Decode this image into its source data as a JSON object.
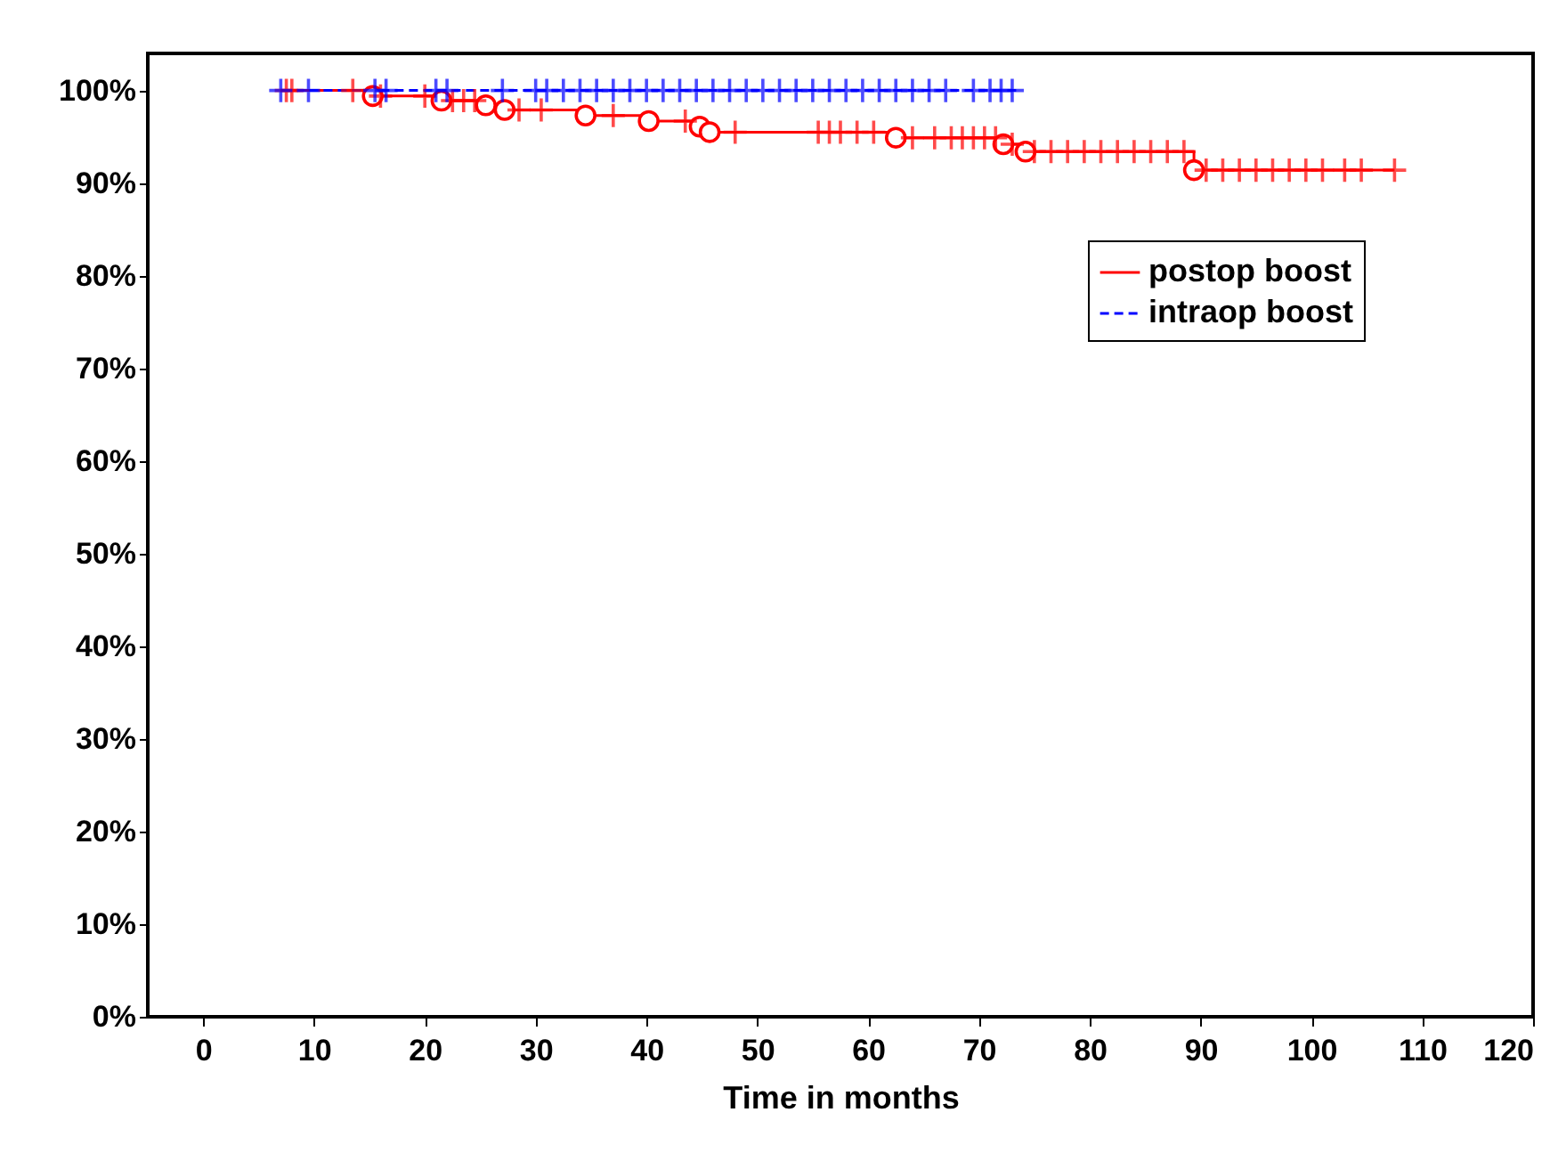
{
  "chart_data": {
    "type": "step",
    "xlabel": "Time in months",
    "xlim": [
      -5,
      120
    ],
    "ylim": [
      0,
      104
    ],
    "xticks": [
      0,
      10,
      20,
      30,
      40,
      50,
      60,
      70,
      80,
      90,
      100,
      110,
      120
    ],
    "yticks": [
      {
        "value": 0,
        "label": "0%"
      },
      {
        "value": 10,
        "label": "10%"
      },
      {
        "value": 20,
        "label": "20%"
      },
      {
        "value": 30,
        "label": "30%"
      },
      {
        "value": 40,
        "label": "40%"
      },
      {
        "value": 50,
        "label": "50%"
      },
      {
        "value": 60,
        "label": "60%"
      },
      {
        "value": 70,
        "label": "70%"
      },
      {
        "value": 80,
        "label": "80%"
      },
      {
        "value": 90,
        "label": "90%"
      },
      {
        "value": 100,
        "label": "100%"
      }
    ],
    "grid": false,
    "legend": "top right",
    "series": [
      {
        "name": "postop boost",
        "color": "#ff0000",
        "line_style": "solid",
        "marker": "none",
        "x": [
          7,
          15.3,
          21.5,
          25.5,
          27.2,
          34.5,
          40.2,
          44.8,
          45.7,
          62.5,
          72.2,
          74.2,
          89.4,
          107.5
        ],
        "values": [
          100,
          99.4,
          98.9,
          98.4,
          97.9,
          97.3,
          96.7,
          96.1,
          95.5,
          94.9,
          94.2,
          93.4,
          91.4,
          91.4
        ]
      },
      {
        "name": "intraop boost",
        "color": "#0000ff",
        "line_style": "dashed",
        "marker": "none",
        "x": [
          7,
          73.5
        ],
        "values": [
          100,
          100
        ]
      },
      {
        "type": "scatter",
        "color": "#ff0000",
        "marker": "circle",
        "x": [
          15.3,
          21.5,
          25.5,
          27.2,
          34.5,
          40.2,
          44.8,
          45.7,
          62.5,
          72.2,
          74.2,
          89.4
        ],
        "values": [
          99.4,
          98.9,
          98.4,
          97.9,
          97.3,
          96.7,
          96.1,
          95.5,
          94.9,
          94.2,
          93.4,
          91.4
        ]
      },
      {
        "type": "scatter",
        "color": "#ff0000",
        "marker": "cross",
        "x": [
          7.5,
          8,
          13.5,
          16,
          20,
          22.5,
          23.5,
          24.5,
          28.5,
          30.5,
          37,
          43.5,
          48,
          55.5,
          56.5,
          57.5,
          59,
          60.5,
          64,
          66,
          67.5,
          68.5,
          69.5,
          70.5,
          71.5,
          73,
          75,
          76.5,
          78,
          79.5,
          81,
          82.5,
          84,
          85.5,
          87,
          88.5,
          90.5,
          92,
          93.5,
          95,
          96.5,
          98,
          99.5,
          101,
          103,
          104.5,
          107.5
        ],
        "values": [
          100,
          100,
          100,
          99.4,
          99.4,
          98.9,
          98.9,
          98.9,
          97.9,
          97.9,
          97.3,
          96.7,
          95.5,
          95.5,
          95.5,
          95.5,
          95.5,
          95.5,
          94.9,
          94.9,
          94.9,
          94.9,
          94.9,
          94.9,
          94.9,
          94.2,
          93.4,
          93.4,
          93.4,
          93.4,
          93.4,
          93.4,
          93.4,
          93.4,
          93.4,
          93.4,
          91.4,
          91.4,
          91.4,
          91.4,
          91.4,
          91.4,
          91.4,
          91.4,
          91.4,
          91.4,
          91.4
        ]
      },
      {
        "type": "scatter",
        "color": "#0000ff",
        "marker": "cross",
        "x": [
          7,
          9.5,
          15.5,
          16.5,
          21,
          22,
          27,
          30,
          31,
          32.5,
          34,
          35.5,
          37,
          38.5,
          40,
          41.5,
          43,
          44.5,
          46,
          47.5,
          49,
          50.5,
          52,
          53.5,
          55,
          56.5,
          58,
          59.5,
          61,
          62.5,
          64,
          65.5,
          67,
          69.5,
          71,
          72,
          73
        ],
        "values": [
          100,
          100,
          100,
          100,
          100,
          100,
          100,
          100,
          100,
          100,
          100,
          100,
          100,
          100,
          100,
          100,
          100,
          100,
          100,
          100,
          100,
          100,
          100,
          100,
          100,
          100,
          100,
          100,
          100,
          100,
          100,
          100,
          100,
          100,
          100,
          100,
          100
        ]
      }
    ]
  }
}
